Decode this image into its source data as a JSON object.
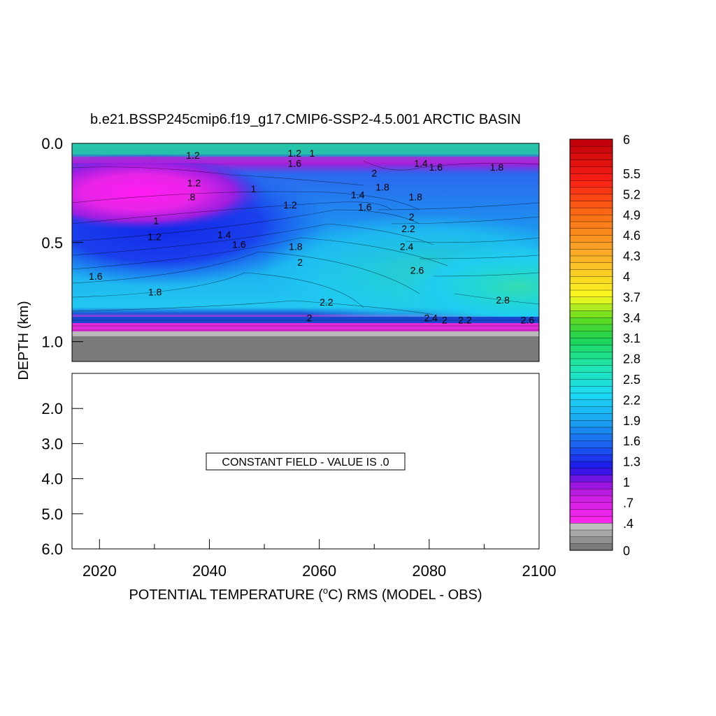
{
  "chart_data": {
    "type": "heatmap",
    "title": "b.e21.BSSP245cmip6.f19_g17.CMIP6-SSP2-4.5.001 ARCTIC BASIN",
    "xlabel": "POTENTIAL TEMPERATURE (",
    "xlabel_unit": "o",
    "xlabel_tail": "C) RMS (MODEL - OBS)",
    "ylabel": "DEPTH (km)",
    "x_range": [
      2015,
      2100
    ],
    "x_ticks": [
      "2020",
      "2040",
      "2060",
      "2080",
      "2100"
    ],
    "upper_panel": {
      "y_range": [
        0.0,
        1.1
      ],
      "y_ticks": [
        "0.0",
        "0.5",
        "1.0"
      ],
      "bottom_depth_km": 0.98,
      "contour_labels": [
        {
          "text": "1.2",
          "x": 2037,
          "y": 0.06
        },
        {
          "text": "1.2",
          "x": 2055.5,
          "y": 0.05
        },
        {
          "text": "1",
          "x": 2058.7,
          "y": 0.05
        },
        {
          "text": "1.6",
          "x": 2055.5,
          "y": 0.1
        },
        {
          "text": "1.4",
          "x": 2078.5,
          "y": 0.1
        },
        {
          "text": "1.6",
          "x": 2081.2,
          "y": 0.12
        },
        {
          "text": "1.8",
          "x": 2092.3,
          "y": 0.12
        },
        {
          "text": "2",
          "x": 2070,
          "y": 0.15
        },
        {
          "text": "1.2",
          "x": 2037.2,
          "y": 0.2
        },
        {
          "text": "1.8",
          "x": 2071.5,
          "y": 0.22
        },
        {
          "text": "1",
          "x": 2048,
          "y": 0.23
        },
        {
          "text": ".8",
          "x": 2036.7,
          "y": 0.27
        },
        {
          "text": "1.4",
          "x": 2067,
          "y": 0.26
        },
        {
          "text": "1.8",
          "x": 2077.5,
          "y": 0.27
        },
        {
          "text": "1.2",
          "x": 2054.7,
          "y": 0.31
        },
        {
          "text": "1.6",
          "x": 2068.3,
          "y": 0.32
        },
        {
          "text": "2",
          "x": 2076.8,
          "y": 0.37
        },
        {
          "text": "1",
          "x": 2030.3,
          "y": 0.39
        },
        {
          "text": "2.2",
          "x": 2076.2,
          "y": 0.43
        },
        {
          "text": "1.2",
          "x": 2030,
          "y": 0.47
        },
        {
          "text": "1.4",
          "x": 2042.7,
          "y": 0.46
        },
        {
          "text": "1.6",
          "x": 2045.4,
          "y": 0.51
        },
        {
          "text": "1.8",
          "x": 2055.7,
          "y": 0.52
        },
        {
          "text": "2.4",
          "x": 2075.9,
          "y": 0.52
        },
        {
          "text": "2",
          "x": 2056.5,
          "y": 0.6
        },
        {
          "text": "2.6",
          "x": 2077.8,
          "y": 0.64
        },
        {
          "text": "1.6",
          "x": 2019.3,
          "y": 0.67
        },
        {
          "text": "1.8",
          "x": 2030.1,
          "y": 0.75
        },
        {
          "text": "2.8",
          "x": 2093.4,
          "y": 0.79
        },
        {
          "text": "2.2",
          "x": 2061.3,
          "y": 0.8
        },
        {
          "text": "2",
          "x": 2058.2,
          "y": 0.88
        },
        {
          "text": "2.4",
          "x": 2080.3,
          "y": 0.88
        },
        {
          "text": "2",
          "x": 2082.8,
          "y": 0.89
        },
        {
          "text": "2.2",
          "x": 2086.5,
          "y": 0.89
        },
        {
          "text": "2.6",
          "x": 2097.9,
          "y": 0.89
        }
      ]
    },
    "lower_panel": {
      "y_range": [
        1.0,
        6.0
      ],
      "y_ticks": [
        "2.0",
        "3.0",
        "4.0",
        "5.0",
        "6.0"
      ],
      "annotation": "CONSTANT FIELD - VALUE IS .0"
    },
    "colorbar": {
      "min": 0,
      "max": 6,
      "levels": 60,
      "labels": [
        "6",
        "5.5",
        "5.2",
        "4.9",
        "4.6",
        "4.3",
        "4",
        "3.7",
        "3.4",
        "3.1",
        "2.8",
        "2.5",
        "2.2",
        "1.9",
        "1.6",
        "1.3",
        "1",
        ".7",
        ".4",
        "0"
      ]
    }
  }
}
